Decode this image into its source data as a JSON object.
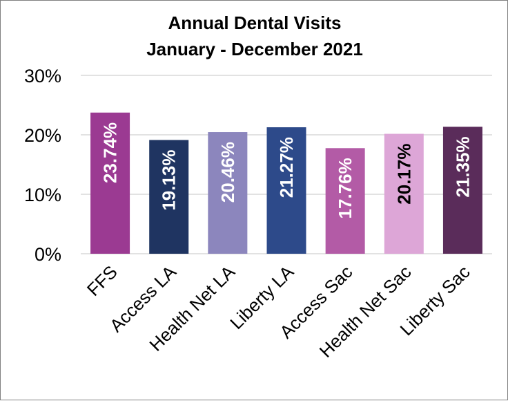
{
  "chart_data": {
    "type": "bar",
    "title": "Annual Dental Visits",
    "subtitle": "January - December 2021",
    "categories": [
      "FFS",
      "Access LA",
      "Health Net LA",
      "Liberty LA",
      "Access Sac",
      "Health Net Sac",
      "Liberty Sac"
    ],
    "values": [
      23.74,
      19.13,
      20.46,
      21.27,
      17.76,
      20.17,
      21.35
    ],
    "data_labels": [
      "23.74%",
      "19.13%",
      "20.46%",
      "21.27%",
      "17.76%",
      "20.17%",
      "21.35%"
    ],
    "bar_colors": [
      "#9b3a92",
      "#1f3461",
      "#8c86bd",
      "#2d4a8a",
      "#b35ba6",
      "#dda6d7",
      "#5a2c5a"
    ],
    "label_colors": [
      "#ffffff",
      "#ffffff",
      "#ffffff",
      "#ffffff",
      "#ffffff",
      "#000000",
      "#ffffff"
    ],
    "yticks": [
      0,
      10,
      20,
      30
    ],
    "ytick_labels": [
      "0%",
      "10%",
      "20%",
      "30%"
    ],
    "ylim": [
      0,
      30
    ],
    "grid": true,
    "gridline_color": "#d9d9d9",
    "legend": "none"
  }
}
